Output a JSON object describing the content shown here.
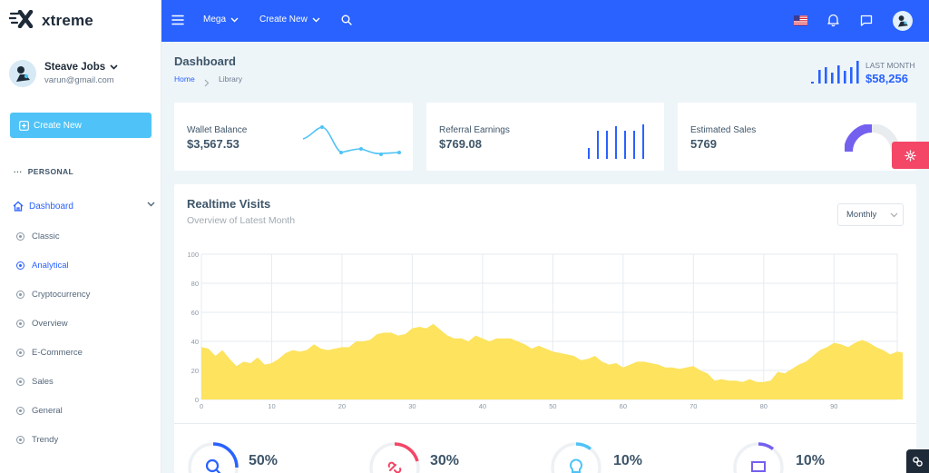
{
  "app": {
    "name": "xtreme"
  },
  "user": {
    "name": "Steave Jobs",
    "email": "varun@gmail.com"
  },
  "sidebar": {
    "create_label": "Create New",
    "section": "PERSONAL",
    "dashboard_label": "Dashboard",
    "items": [
      "Classic",
      "Analytical",
      "Cryptocurrency",
      "Overview",
      "E-Commerce",
      "Sales",
      "General",
      "Trendy"
    ],
    "active_item": "Analytical"
  },
  "topbar": {
    "mega": "Mega",
    "create_new": "Create New"
  },
  "page": {
    "title": "Dashboard",
    "breadcrumb": [
      "Home",
      "Library"
    ],
    "last_month_label": "LAST MONTH",
    "last_month_value": "$58,256"
  },
  "cards": [
    {
      "label": "Wallet Balance",
      "value": "$3,567.53"
    },
    {
      "label": "Referral Earnings",
      "value": "$769.08"
    },
    {
      "label": "Estimated Sales",
      "value": "5769"
    }
  ],
  "realtime": {
    "title": "Realtime Visits",
    "subtitle": "Overview of Latest Month",
    "dropdown": "Monthly"
  },
  "stats": [
    "50%",
    "30%",
    "10%",
    "10%"
  ],
  "colors": {
    "primary": "#2962ff",
    "accent": "#4fc3f7",
    "danger": "#f44667",
    "area": "#fde35e",
    "purple": "#7460ee"
  },
  "chart_data": {
    "type": "area",
    "xlim": [
      0,
      99
    ],
    "ylim": [
      0,
      100
    ],
    "x_ticks": [
      0,
      10,
      20,
      30,
      40,
      50,
      60,
      70,
      80,
      90
    ],
    "y_ticks": [
      0,
      20,
      40,
      60,
      80,
      100
    ],
    "grid": true,
    "series": [
      {
        "values": [
          36,
          35,
          30,
          34,
          28,
          23,
          26,
          25,
          29,
          24,
          25,
          28,
          32,
          34,
          33,
          34,
          38,
          35,
          34,
          35,
          36,
          36,
          40,
          40,
          41,
          45,
          46,
          46,
          44,
          45,
          49,
          50,
          49,
          52,
          48,
          44,
          42,
          42,
          40,
          44,
          42,
          40,
          42,
          42,
          42,
          40,
          38,
          35,
          37,
          35,
          33,
          32,
          31,
          30,
          27,
          28,
          30,
          26,
          24,
          25,
          22,
          24,
          26,
          26,
          25,
          24,
          22,
          22,
          21,
          22,
          23,
          20,
          18,
          13,
          14,
          13,
          13,
          12,
          14,
          12,
          12,
          13,
          19,
          18,
          21,
          24,
          26,
          30,
          34,
          36,
          39,
          38,
          36,
          39,
          41,
          39,
          36,
          34,
          31,
          33,
          32
        ]
      }
    ]
  }
}
